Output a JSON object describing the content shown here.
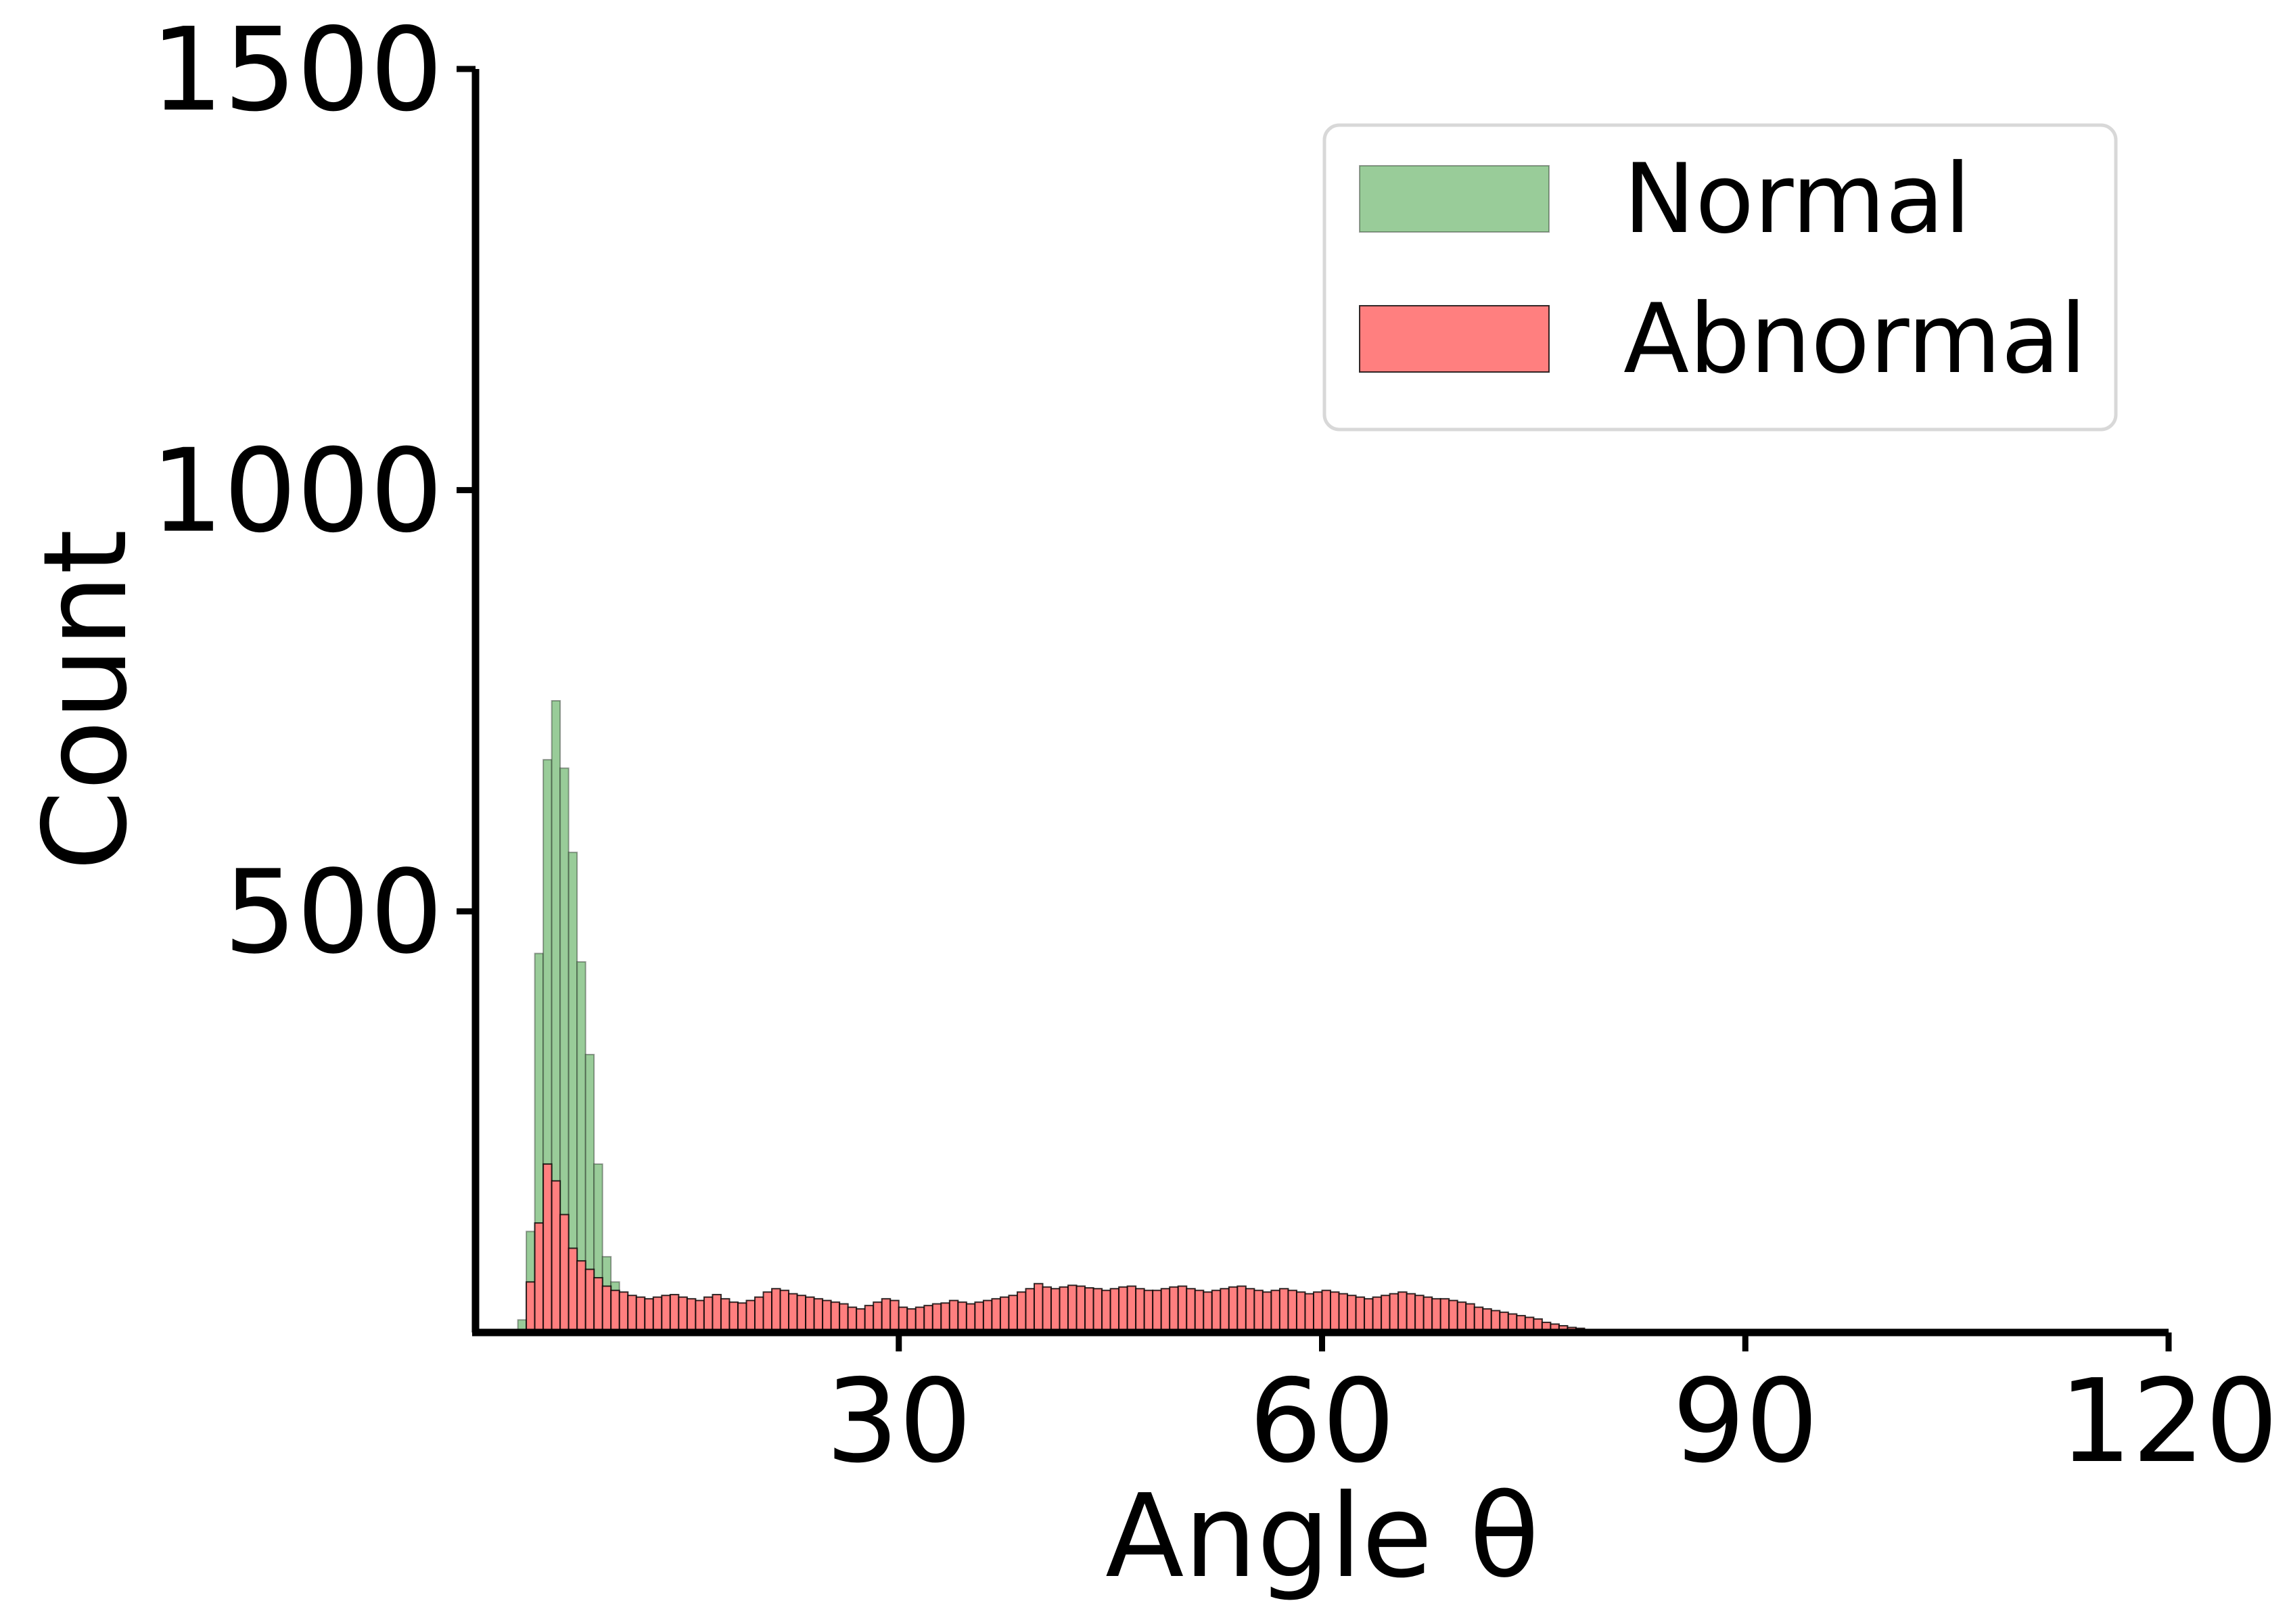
{
  "chart_data": {
    "type": "bar",
    "subtype": "histogram-overlay",
    "xlabel": "Angle θ",
    "ylabel": "Count",
    "xlim": [
      0,
      120
    ],
    "ylim": [
      0,
      1500
    ],
    "xticks": [
      30,
      60,
      90,
      120
    ],
    "yticks": [
      500,
      1000,
      1500
    ],
    "grid": false,
    "legend_position": "top-right",
    "bin_width": 0.6,
    "series": [
      {
        "name": "Normal",
        "color": "#99cc99",
        "start": 3.0,
        "values": [
          15,
          120,
          450,
          680,
          750,
          670,
          570,
          440,
          330,
          200,
          90,
          60,
          35,
          20,
          10,
          5
        ]
      },
      {
        "name": "Abnormal",
        "color": "#ff7f7f",
        "start": 3.6,
        "values": [
          60,
          130,
          200,
          180,
          140,
          100,
          85,
          75,
          65,
          55,
          50,
          48,
          44,
          42,
          40,
          42,
          44,
          45,
          42,
          40,
          38,
          42,
          45,
          40,
          36,
          35,
          38,
          42,
          48,
          52,
          50,
          46,
          44,
          42,
          40,
          38,
          36,
          34,
          30,
          28,
          32,
          36,
          40,
          38,
          30,
          28,
          30,
          32,
          34,
          35,
          38,
          36,
          34,
          36,
          38,
          40,
          42,
          44,
          48,
          52,
          58,
          54,
          52,
          54,
          56,
          55,
          53,
          52,
          50,
          52,
          54,
          55,
          52,
          50,
          50,
          52,
          54,
          55,
          52,
          50,
          48,
          50,
          52,
          54,
          55,
          52,
          50,
          48,
          50,
          52,
          50,
          48,
          46,
          48,
          50,
          48,
          46,
          44,
          42,
          40,
          42,
          44,
          46,
          48,
          46,
          44,
          42,
          40,
          40,
          38,
          36,
          34,
          30,
          28,
          26,
          24,
          22,
          20,
          18,
          16,
          12,
          10,
          8,
          6,
          5,
          3,
          2,
          1
        ]
      }
    ]
  }
}
